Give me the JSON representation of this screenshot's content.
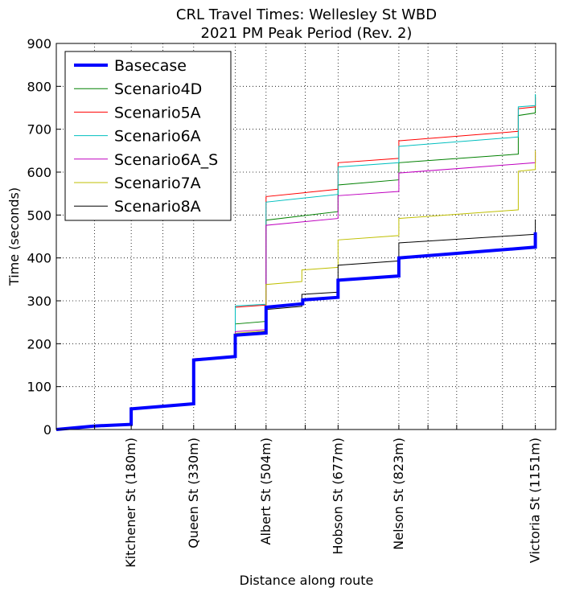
{
  "chart_data": {
    "type": "line",
    "title": [
      "CRL Travel Times: Wellesley St WBD",
      "2021 PM Peak Period (Rev. 2)"
    ],
    "xlabel": "Distance along route",
    "ylabel": "Time (seconds)",
    "xlim": [
      0,
      1200
    ],
    "ylim": [
      0,
      900
    ],
    "yticks": [
      0,
      100,
      200,
      300,
      400,
      500,
      600,
      700,
      800,
      900
    ],
    "grid": true,
    "legend_position": "top-left",
    "x_tick_labels": [
      {
        "x": 180,
        "label": "Kitchener St (180m)"
      },
      {
        "x": 330,
        "label": "Queen St (330m)"
      },
      {
        "x": 504,
        "label": "Albert St (504m)"
      },
      {
        "x": 677,
        "label": "Hobson St (677m)"
      },
      {
        "x": 823,
        "label": "Nelson St (823m)"
      },
      {
        "x": 1151,
        "label": "Victoria St (1151m)"
      }
    ],
    "x_grid_minor": [
      92,
      256,
      430,
      598,
      893,
      962,
      1072
    ],
    "series": [
      {
        "name": "Basecase",
        "color": "#0000ff",
        "width": 4,
        "points": [
          [
            0,
            0
          ],
          [
            90,
            8
          ],
          [
            180,
            12
          ],
          [
            180,
            48
          ],
          [
            330,
            60
          ],
          [
            330,
            162
          ],
          [
            430,
            170
          ],
          [
            430,
            220
          ],
          [
            504,
            225
          ],
          [
            504,
            285
          ],
          [
            592,
            293
          ],
          [
            592,
            302
          ],
          [
            677,
            308
          ],
          [
            677,
            348
          ],
          [
            823,
            358
          ],
          [
            823,
            400
          ],
          [
            1151,
            425
          ],
          [
            1151,
            460
          ]
        ]
      },
      {
        "name": "Scenario4D",
        "color": "#008000",
        "width": 1,
        "points": [
          [
            0,
            0
          ],
          [
            180,
            12
          ],
          [
            180,
            50
          ],
          [
            330,
            62
          ],
          [
            330,
            163
          ],
          [
            430,
            170
          ],
          [
            430,
            246
          ],
          [
            504,
            252
          ],
          [
            504,
            488
          ],
          [
            677,
            508
          ],
          [
            677,
            570
          ],
          [
            823,
            582
          ],
          [
            823,
            622
          ],
          [
            1110,
            642
          ],
          [
            1110,
            732
          ],
          [
            1151,
            738
          ],
          [
            1151,
            780
          ]
        ]
      },
      {
        "name": "Scenario5A",
        "color": "#ff0000",
        "width": 1,
        "points": [
          [
            0,
            0
          ],
          [
            180,
            12
          ],
          [
            180,
            50
          ],
          [
            330,
            62
          ],
          [
            330,
            165
          ],
          [
            430,
            170
          ],
          [
            430,
            285
          ],
          [
            504,
            290
          ],
          [
            504,
            543
          ],
          [
            677,
            560
          ],
          [
            677,
            622
          ],
          [
            823,
            632
          ],
          [
            823,
            673
          ],
          [
            1110,
            695
          ],
          [
            1110,
            748
          ],
          [
            1151,
            752
          ],
          [
            1151,
            775
          ]
        ]
      },
      {
        "name": "Scenario6A",
        "color": "#00bfbf",
        "width": 1,
        "points": [
          [
            0,
            0
          ],
          [
            180,
            12
          ],
          [
            180,
            50
          ],
          [
            330,
            62
          ],
          [
            330,
            164
          ],
          [
            430,
            170
          ],
          [
            430,
            288
          ],
          [
            504,
            292
          ],
          [
            504,
            530
          ],
          [
            677,
            548
          ],
          [
            677,
            612
          ],
          [
            823,
            622
          ],
          [
            823,
            660
          ],
          [
            1110,
            682
          ],
          [
            1110,
            752
          ],
          [
            1151,
            755
          ],
          [
            1151,
            782
          ]
        ]
      },
      {
        "name": "Scenario6A_S",
        "color": "#bf00bf",
        "width": 1,
        "points": [
          [
            0,
            0
          ],
          [
            180,
            12
          ],
          [
            180,
            50
          ],
          [
            330,
            62
          ],
          [
            330,
            163
          ],
          [
            430,
            170
          ],
          [
            430,
            228
          ],
          [
            504,
            233
          ],
          [
            504,
            476
          ],
          [
            677,
            492
          ],
          [
            677,
            545
          ],
          [
            823,
            555
          ],
          [
            823,
            598
          ],
          [
            1151,
            622
          ],
          [
            1151,
            648
          ]
        ]
      },
      {
        "name": "Scenario7A",
        "color": "#bfbf00",
        "width": 1,
        "points": [
          [
            0,
            0
          ],
          [
            180,
            12
          ],
          [
            180,
            50
          ],
          [
            330,
            62
          ],
          [
            330,
            162
          ],
          [
            430,
            170
          ],
          [
            430,
            224
          ],
          [
            504,
            230
          ],
          [
            504,
            338
          ],
          [
            590,
            345
          ],
          [
            590,
            372
          ],
          [
            677,
            378
          ],
          [
            677,
            442
          ],
          [
            823,
            452
          ],
          [
            823,
            492
          ],
          [
            1110,
            512
          ],
          [
            1110,
            602
          ],
          [
            1151,
            606
          ],
          [
            1151,
            650
          ]
        ]
      },
      {
        "name": "Scenario8A",
        "color": "#000000",
        "width": 1,
        "points": [
          [
            0,
            0
          ],
          [
            180,
            12
          ],
          [
            180,
            48
          ],
          [
            330,
            60
          ],
          [
            330,
            160
          ],
          [
            430,
            168
          ],
          [
            430,
            222
          ],
          [
            504,
            228
          ],
          [
            504,
            280
          ],
          [
            590,
            287
          ],
          [
            590,
            315
          ],
          [
            677,
            320
          ],
          [
            677,
            383
          ],
          [
            823,
            393
          ],
          [
            823,
            435
          ],
          [
            1151,
            455
          ],
          [
            1151,
            490
          ]
        ]
      }
    ]
  }
}
